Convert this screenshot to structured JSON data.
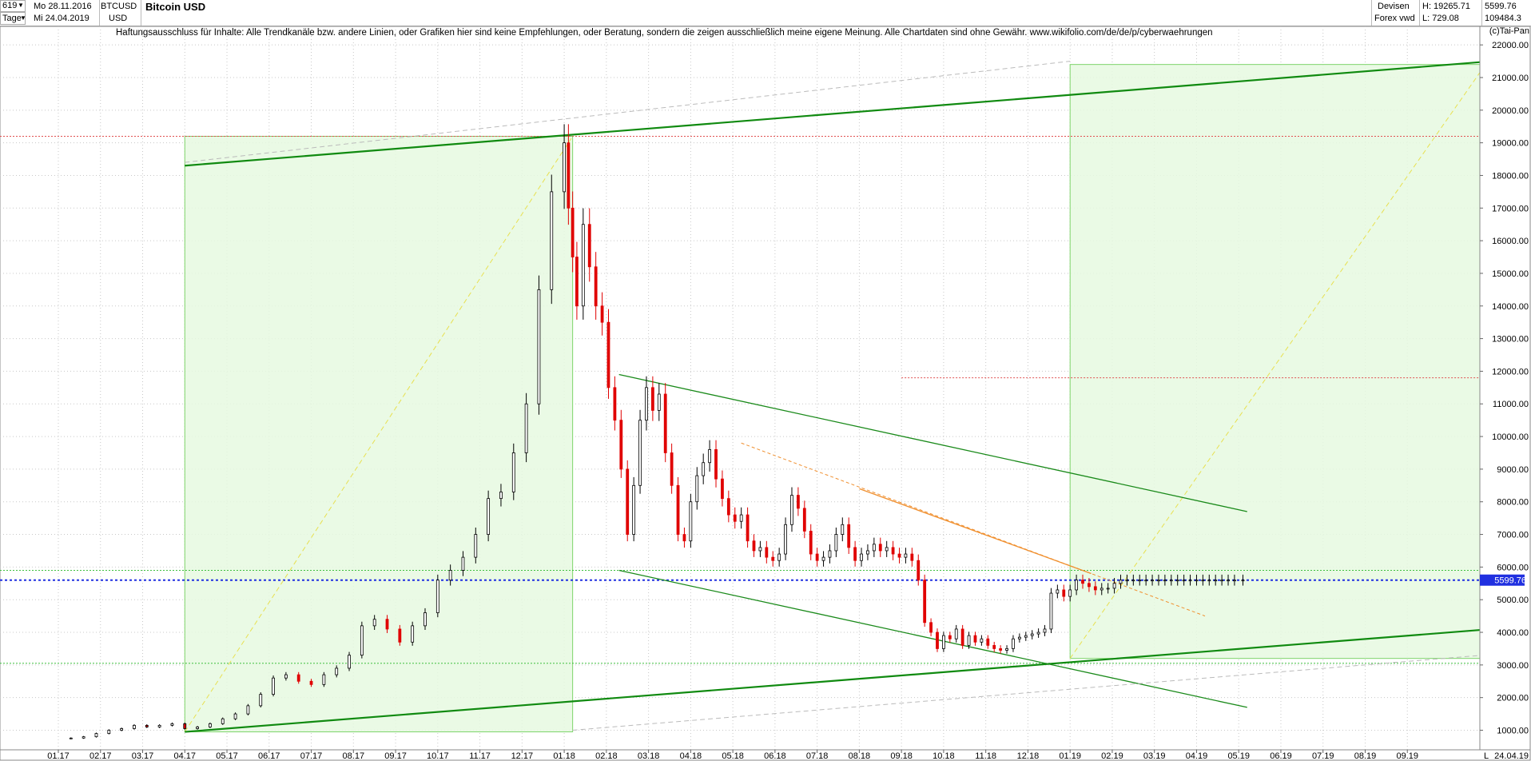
{
  "header": {
    "counter": "619",
    "period": "Tage",
    "date_from": "Mo 28.11.2016",
    "date_to": "Mi 24.04.2019",
    "symbol": "BTCUSD",
    "currency": "USD",
    "title": "Bitcoin USD",
    "category": "Devisen",
    "source": "Forex vwd",
    "high_label": "H: 19265.71",
    "low_label": "L: 729.08",
    "last_value": "5599.76",
    "volume_value": "109484.3"
  },
  "disclaimer": "Haftungsausschluss für Inhalte: Alle Trendkanäle bzw. andere Linien, oder Grafiken hier sind keine Empfehlungen, oder Beratung, sondern die zeigen ausschließlich meine eigene Meinung. Alle Chartdaten sind ohne Gewähr.  www.wikifolio.com/de/de/p/cyberwaehrungen",
  "copyright": "(c)Tai-Pan",
  "chart_data": {
    "type": "candlestick",
    "title": "Bitcoin USD",
    "ylim": [
      400,
      22200
    ],
    "y_ticks": [
      "1000.00",
      "2000.00",
      "3000.00",
      "4000.00",
      "5000.00",
      "6000.00",
      "7000.00",
      "8000.00",
      "9000.00",
      "10000.00",
      "11000.00",
      "12000.00",
      "13000.00",
      "14000.00",
      "15000.00",
      "16000.00",
      "17000.00",
      "18000.00",
      "19000.00",
      "20000.00",
      "21000.00",
      "22000.00"
    ],
    "y_tick_values": [
      1000,
      2000,
      3000,
      4000,
      5000,
      6000,
      7000,
      8000,
      9000,
      10000,
      11000,
      12000,
      13000,
      14000,
      15000,
      16000,
      17000,
      18000,
      19000,
      20000,
      21000,
      22000
    ],
    "x_ticks": [
      "01.17",
      "02.17",
      "03.17",
      "04.17",
      "05.17",
      "06.17",
      "07.17",
      "08.17",
      "09.17",
      "10.17",
      "11.17",
      "12.17",
      "01.18",
      "02.18",
      "03.18",
      "04.18",
      "05.18",
      "06.18",
      "07.18",
      "08.18",
      "09.18",
      "10.18",
      "11.18",
      "12.18",
      "01.19",
      "02.19",
      "03.19",
      "04.19",
      "05.19",
      "06.19",
      "07.19",
      "08.19",
      "09.19"
    ],
    "x_range_months": [
      0,
      34
    ],
    "last_price_label": "5599.76",
    "last_date_label": "24.04.19",
    "axis_corner_label": "L",
    "price_series": {
      "t_months": [
        0.0,
        0.3,
        0.6,
        0.9,
        1.2,
        1.5,
        1.8,
        2.1,
        2.4,
        2.7,
        3.0,
        3.3,
        3.6,
        3.9,
        4.2,
        4.5,
        4.8,
        5.1,
        5.4,
        5.7,
        6.0,
        6.3,
        6.6,
        6.9,
        7.2,
        7.5,
        7.8,
        8.1,
        8.4,
        8.7,
        9.0,
        9.3,
        9.6,
        9.9,
        10.2,
        10.5,
        10.8,
        11.1,
        11.4,
        11.7,
        12.0,
        12.1,
        12.2,
        12.3,
        12.45,
        12.6,
        12.75,
        12.9,
        13.05,
        13.2,
        13.35,
        13.5,
        13.65,
        13.8,
        13.95,
        14.1,
        14.25,
        14.4,
        14.55,
        14.7,
        14.85,
        15.0,
        15.15,
        15.3,
        15.45,
        15.6,
        15.75,
        15.9,
        16.05,
        16.2,
        16.35,
        16.5,
        16.65,
        16.8,
        16.95,
        17.1,
        17.25,
        17.4,
        17.55,
        17.7,
        17.85,
        18.0,
        18.15,
        18.3,
        18.45,
        18.6,
        18.75,
        18.9,
        19.05,
        19.2,
        19.35,
        19.5,
        19.65,
        19.8,
        19.95,
        20.1,
        20.25,
        20.4,
        20.55,
        20.7,
        20.85,
        21.0,
        21.15,
        21.3,
        21.45,
        21.6,
        21.75,
        21.9,
        22.05,
        22.2,
        22.35,
        22.5,
        22.65,
        22.8,
        22.95,
        23.1,
        23.25,
        23.4,
        23.55,
        23.7,
        23.85,
        24.0,
        24.15,
        24.3,
        24.45,
        24.6,
        24.75,
        24.9,
        25.05,
        25.2,
        25.35,
        25.5,
        25.65,
        25.8,
        25.95,
        26.1,
        26.25,
        26.4,
        26.55,
        26.7,
        26.85,
        27.0,
        27.15,
        27.3,
        27.45,
        27.6,
        27.75,
        27.9,
        28.1
      ],
      "close": [
        750,
        760,
        800,
        900,
        1000,
        1050,
        1150,
        1100,
        1150,
        1200,
        1050,
        1100,
        1200,
        1350,
        1500,
        1750,
        2100,
        2600,
        2700,
        2500,
        2400,
        2700,
        2900,
        3300,
        4200,
        4400,
        4100,
        3700,
        4200,
        4600,
        5600,
        5900,
        6300,
        7000,
        8100,
        8300,
        9500,
        11000,
        14500,
        17500,
        19000,
        17000,
        15500,
        14000,
        16500,
        15200,
        14000,
        13500,
        11500,
        10500,
        9000,
        7000,
        8500,
        10500,
        11500,
        10800,
        11300,
        9500,
        8500,
        7000,
        6800,
        8000,
        8800,
        9200,
        9600,
        8700,
        8100,
        7600,
        7400,
        7600,
        6800,
        6500,
        6600,
        6300,
        6200,
        6400,
        7300,
        8200,
        7800,
        7100,
        6400,
        6200,
        6300,
        6500,
        7000,
        7300,
        6600,
        6200,
        6400,
        6500,
        6700,
        6500,
        6600,
        6400,
        6300,
        6400,
        6200,
        5600,
        4300,
        4000,
        3500,
        3900,
        3800,
        4100,
        3600,
        3900,
        3700,
        3800,
        3600,
        3500,
        3450,
        3500,
        3800,
        3850,
        3900,
        3950,
        4000,
        4100,
        5200,
        5300,
        5100,
        5300,
        5600,
        5500,
        5400,
        5300,
        5350,
        5350,
        5500,
        5600,
        5600,
        5600,
        5600,
        5600,
        5600,
        5600,
        5600,
        5600,
        5600,
        5600,
        5600,
        5600,
        5600,
        5600,
        5600,
        5600,
        5600,
        5600,
        5600,
        5600
      ]
    },
    "horizontal_levels": {
      "last_price": 5599.76,
      "support_upper": 5900,
      "support_lower": 3050,
      "resistance_red": 19200,
      "resistance_red2": 11800
    },
    "trendlines": {
      "major_channel_top": {
        "from": [
          3.0,
          18300
        ],
        "to": [
          34.0,
          21500
        ]
      },
      "major_channel_bottom": {
        "from": [
          3.0,
          950
        ],
        "to": [
          34.0,
          4100
        ]
      },
      "down_channel_top": {
        "from": [
          13.3,
          11900
        ],
        "to": [
          28.2,
          7700
        ]
      },
      "down_channel_bottom": {
        "from": [
          13.3,
          5900
        ],
        "to": [
          28.2,
          1700
        ]
      },
      "orange_down": {
        "from": [
          16.2,
          9800
        ],
        "to": [
          27.2,
          4500
        ]
      },
      "orange_down2": {
        "from": [
          19.0,
          8400
        ],
        "to": [
          24.5,
          5800
        ]
      },
      "yellow_dashed_1": {
        "from": [
          3.0,
          950
        ],
        "to": [
          12.2,
          19200
        ]
      },
      "yellow_dashed_2": {
        "from": [
          24.0,
          3200
        ],
        "to": [
          33.8,
          21300
        ]
      }
    },
    "boxes": {
      "box_left": {
        "x": [
          3.0,
          12.2
        ],
        "y": [
          950,
          19200
        ]
      },
      "box_right": {
        "x": [
          24.0,
          33.8
        ],
        "y": [
          3200,
          21400
        ]
      }
    }
  }
}
